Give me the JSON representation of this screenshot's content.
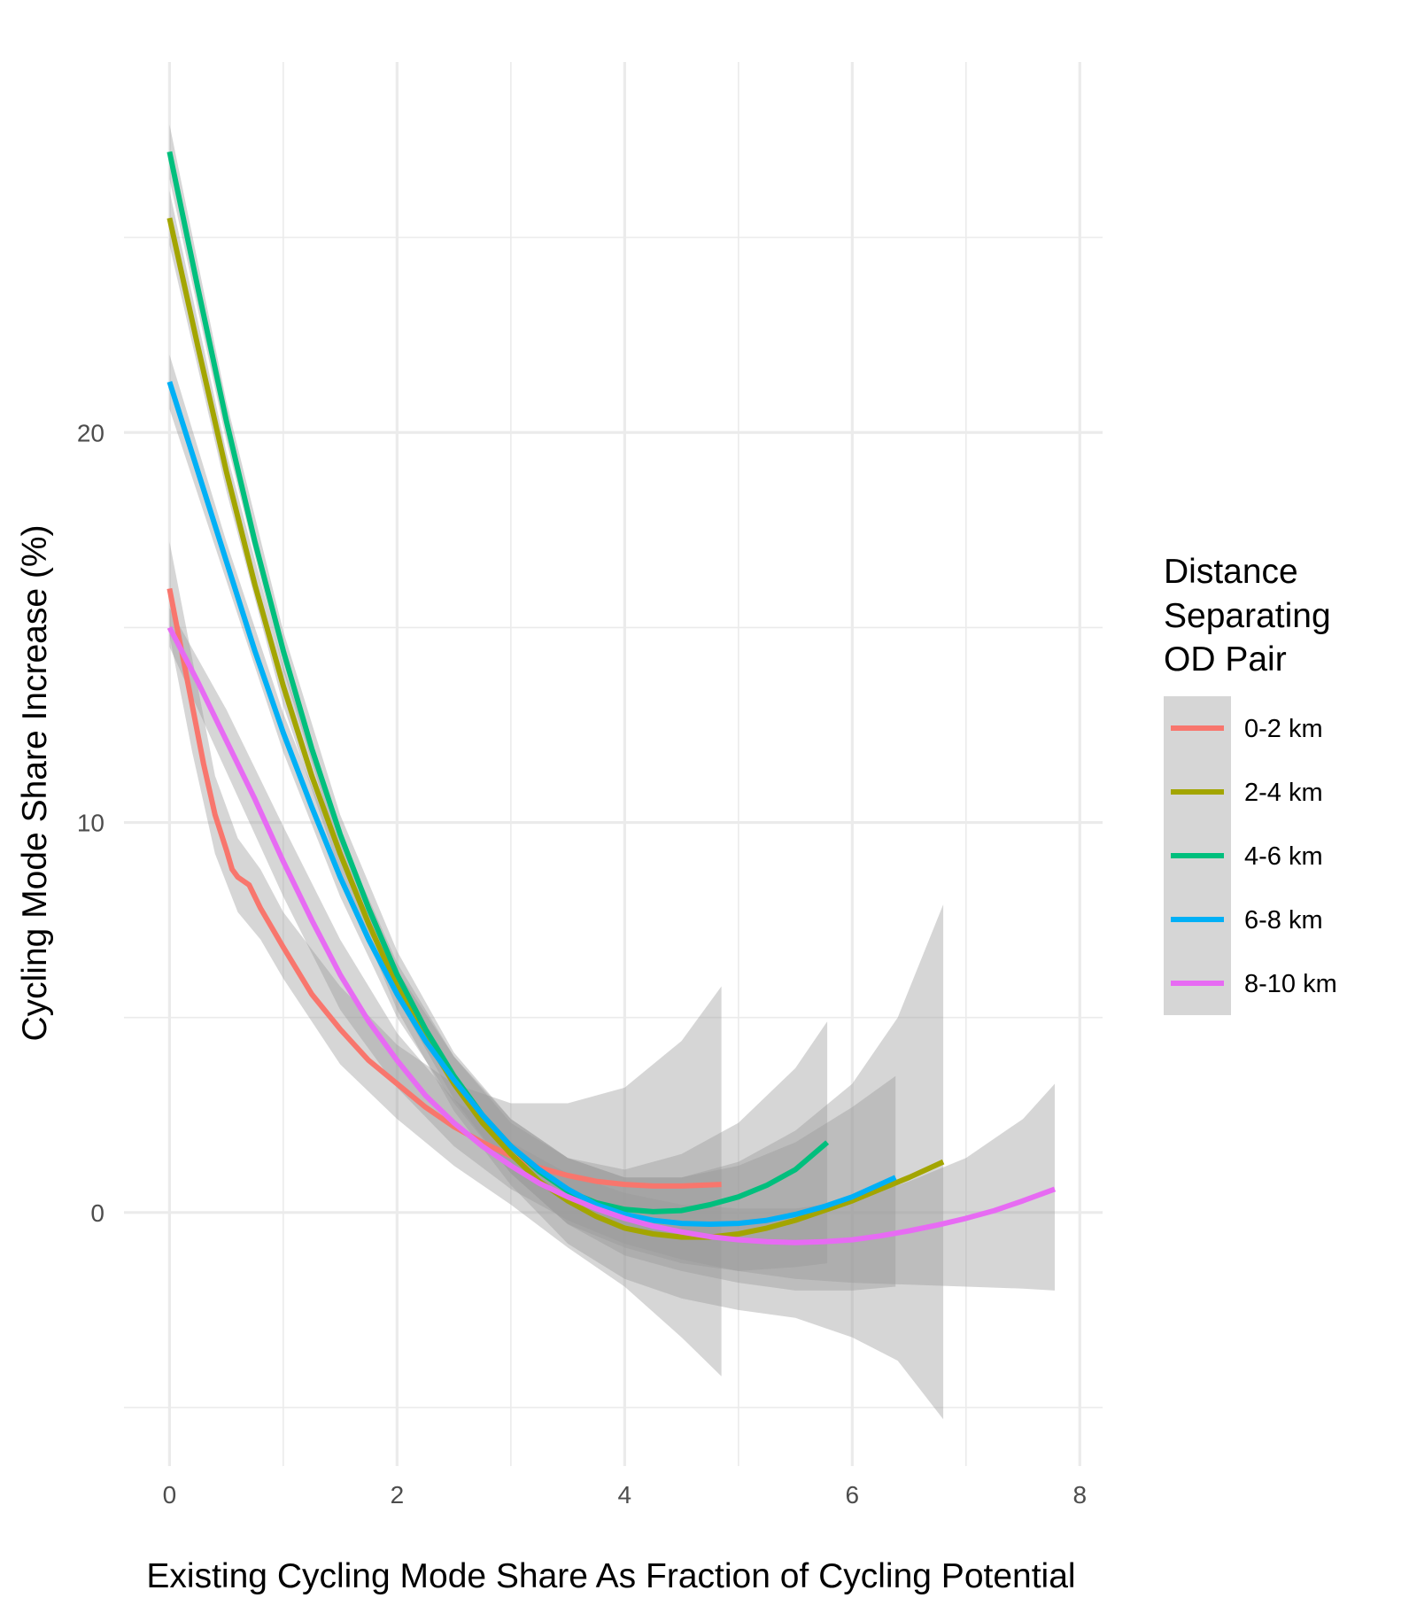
{
  "chart_data": {
    "type": "line",
    "title": "",
    "xlabel": "Existing Cycling Mode Share As Fraction of Cycling Potential",
    "ylabel": "Cycling Mode Share Increase (%)",
    "xlim": [
      -0.4,
      8.2
    ],
    "ylim": [
      -6.5,
      29.5
    ],
    "x_ticks": [
      0,
      2,
      4,
      6,
      8
    ],
    "y_ticks": [
      0,
      10,
      20
    ],
    "grid": true,
    "legend_title": [
      "Distance",
      "Separating",
      "OD Pair"
    ],
    "legend_position": "right",
    "series": [
      {
        "name": "0-2 km",
        "color": "#F8766D",
        "points": [
          [
            0,
            16
          ],
          [
            0.1,
            14.5
          ],
          [
            0.2,
            13
          ],
          [
            0.3,
            11.5
          ],
          [
            0.4,
            10.2
          ],
          [
            0.5,
            9.3
          ],
          [
            0.55,
            8.8
          ],
          [
            0.6,
            8.6
          ],
          [
            0.7,
            8.4
          ],
          [
            0.8,
            7.8
          ],
          [
            1.0,
            6.8
          ],
          [
            1.25,
            5.6
          ],
          [
            1.5,
            4.7
          ],
          [
            1.75,
            3.9
          ],
          [
            2.0,
            3.3
          ],
          [
            2.25,
            2.7
          ],
          [
            2.5,
            2.2
          ],
          [
            2.75,
            1.8
          ],
          [
            3.0,
            1.45
          ],
          [
            3.25,
            1.15
          ],
          [
            3.5,
            0.95
          ],
          [
            3.75,
            0.8
          ],
          [
            4.0,
            0.72
          ],
          [
            4.25,
            0.68
          ],
          [
            4.5,
            0.68
          ],
          [
            4.85,
            0.72
          ]
        ],
        "band": {
          "upper": [
            [
              0,
              17.2
            ],
            [
              0.2,
              14.2
            ],
            [
              0.4,
              11.2
            ],
            [
              0.6,
              9.6
            ],
            [
              0.8,
              8.8
            ],
            [
              1.0,
              7.7
            ],
            [
              1.5,
              5.8
            ],
            [
              2.0,
              4.3
            ],
            [
              2.5,
              3.3
            ],
            [
              3.0,
              2.8
            ],
            [
              3.5,
              2.8
            ],
            [
              4.0,
              3.2
            ],
            [
              4.5,
              4.4
            ],
            [
              4.85,
              5.8
            ]
          ],
          "lower": [
            [
              0,
              14.8
            ],
            [
              0.2,
              11.8
            ],
            [
              0.4,
              9.2
            ],
            [
              0.6,
              7.7
            ],
            [
              0.8,
              7.0
            ],
            [
              1.0,
              6.0
            ],
            [
              1.5,
              3.8
            ],
            [
              2.0,
              2.4
            ],
            [
              2.5,
              1.2
            ],
            [
              3.0,
              0.2
            ],
            [
              3.5,
              -0.9
            ],
            [
              4.0,
              -1.9
            ],
            [
              4.5,
              -3.2
            ],
            [
              4.85,
              -4.2
            ]
          ]
        }
      },
      {
        "name": "2-4 km",
        "color": "#A3A500",
        "points": [
          [
            0,
            25.5
          ],
          [
            0.25,
            22.2
          ],
          [
            0.5,
            19.0
          ],
          [
            0.75,
            16.1
          ],
          [
            1.0,
            13.5
          ],
          [
            1.25,
            11.2
          ],
          [
            1.5,
            9.2
          ],
          [
            1.75,
            7.4
          ],
          [
            2.0,
            5.8
          ],
          [
            2.25,
            4.5
          ],
          [
            2.5,
            3.3
          ],
          [
            2.75,
            2.3
          ],
          [
            3.0,
            1.5
          ],
          [
            3.25,
            0.8
          ],
          [
            3.5,
            0.3
          ],
          [
            3.75,
            -0.1
          ],
          [
            4.0,
            -0.4
          ],
          [
            4.25,
            -0.55
          ],
          [
            4.5,
            -0.63
          ],
          [
            4.75,
            -0.63
          ],
          [
            5.0,
            -0.55
          ],
          [
            5.25,
            -0.4
          ],
          [
            5.5,
            -0.2
          ],
          [
            5.75,
            0.05
          ],
          [
            6.0,
            0.3
          ],
          [
            6.25,
            0.6
          ],
          [
            6.5,
            0.9
          ],
          [
            6.8,
            1.3
          ]
        ],
        "band": {
          "upper": [
            [
              0,
              26.2
            ],
            [
              0.5,
              19.5
            ],
            [
              1.0,
              14.0
            ],
            [
              1.5,
              9.7
            ],
            [
              2.0,
              6.4
            ],
            [
              2.5,
              4.0
            ],
            [
              3.0,
              2.3
            ],
            [
              3.5,
              1.4
            ],
            [
              4.0,
              0.9
            ],
            [
              4.5,
              0.9
            ],
            [
              5.0,
              1.3
            ],
            [
              5.5,
              2.1
            ],
            [
              6.0,
              3.3
            ],
            [
              6.4,
              5.0
            ],
            [
              6.8,
              7.9
            ]
          ],
          "lower": [
            [
              0,
              24.8
            ],
            [
              0.5,
              18.5
            ],
            [
              1.0,
              13.0
            ],
            [
              1.5,
              8.7
            ],
            [
              2.0,
              5.2
            ],
            [
              2.5,
              2.6
            ],
            [
              3.0,
              0.7
            ],
            [
              3.5,
              -0.8
            ],
            [
              4.0,
              -1.7
            ],
            [
              4.5,
              -2.2
            ],
            [
              5.0,
              -2.5
            ],
            [
              5.5,
              -2.7
            ],
            [
              6.0,
              -3.2
            ],
            [
              6.4,
              -3.8
            ],
            [
              6.8,
              -5.3
            ]
          ]
        }
      },
      {
        "name": "4-6 km",
        "color": "#00BF7D",
        "points": [
          [
            0,
            27.2
          ],
          [
            0.25,
            23.7
          ],
          [
            0.5,
            20.3
          ],
          [
            0.75,
            17.2
          ],
          [
            1.0,
            14.4
          ],
          [
            1.25,
            11.9
          ],
          [
            1.5,
            9.7
          ],
          [
            1.75,
            7.8
          ],
          [
            2.0,
            6.1
          ],
          [
            2.25,
            4.7
          ],
          [
            2.5,
            3.5
          ],
          [
            2.75,
            2.5
          ],
          [
            3.0,
            1.7
          ],
          [
            3.25,
            1.05
          ],
          [
            3.5,
            0.55
          ],
          [
            3.75,
            0.25
          ],
          [
            4.0,
            0.08
          ],
          [
            4.25,
            0.02
          ],
          [
            4.5,
            0.05
          ],
          [
            4.75,
            0.2
          ],
          [
            5.0,
            0.4
          ],
          [
            5.25,
            0.7
          ],
          [
            5.5,
            1.1
          ],
          [
            5.78,
            1.8
          ]
        ],
        "band": {
          "upper": [
            [
              0,
              27.9
            ],
            [
              0.5,
              20.8
            ],
            [
              1.0,
              14.9
            ],
            [
              1.5,
              10.2
            ],
            [
              2.0,
              6.7
            ],
            [
              2.5,
              4.1
            ],
            [
              3.0,
              2.4
            ],
            [
              3.5,
              1.4
            ],
            [
              4.0,
              1.1
            ],
            [
              4.5,
              1.5
            ],
            [
              5.0,
              2.3
            ],
            [
              5.5,
              3.7
            ],
            [
              5.78,
              4.9
            ]
          ],
          "lower": [
            [
              0,
              26.5
            ],
            [
              0.5,
              19.8
            ],
            [
              1.0,
              13.9
            ],
            [
              1.5,
              9.2
            ],
            [
              2.0,
              5.5
            ],
            [
              2.5,
              2.9
            ],
            [
              3.0,
              1.0
            ],
            [
              3.5,
              -0.3
            ],
            [
              4.0,
              -0.9
            ],
            [
              4.5,
              -1.3
            ],
            [
              5.0,
              -1.5
            ],
            [
              5.5,
              -1.4
            ],
            [
              5.78,
              -1.3
            ]
          ]
        }
      },
      {
        "name": "6-8 km",
        "color": "#00B0F6",
        "points": [
          [
            0,
            21.3
          ],
          [
            0.25,
            19.0
          ],
          [
            0.5,
            16.7
          ],
          [
            0.75,
            14.4
          ],
          [
            1.0,
            12.3
          ],
          [
            1.25,
            10.4
          ],
          [
            1.5,
            8.6
          ],
          [
            1.75,
            7.0
          ],
          [
            2.0,
            5.6
          ],
          [
            2.25,
            4.4
          ],
          [
            2.5,
            3.4
          ],
          [
            2.75,
            2.5
          ],
          [
            3.0,
            1.7
          ],
          [
            3.25,
            1.1
          ],
          [
            3.5,
            0.6
          ],
          [
            3.75,
            0.2
          ],
          [
            4.0,
            -0.05
          ],
          [
            4.25,
            -0.2
          ],
          [
            4.5,
            -0.28
          ],
          [
            4.75,
            -0.3
          ],
          [
            5.0,
            -0.28
          ],
          [
            5.25,
            -0.2
          ],
          [
            5.5,
            -0.05
          ],
          [
            5.75,
            0.15
          ],
          [
            6.0,
            0.4
          ],
          [
            6.38,
            0.9
          ]
        ],
        "band": {
          "upper": [
            [
              0,
              22.0
            ],
            [
              0.5,
              17.2
            ],
            [
              1.0,
              12.8
            ],
            [
              1.5,
              9.1
            ],
            [
              2.0,
              6.2
            ],
            [
              2.5,
              4.0
            ],
            [
              3.0,
              2.4
            ],
            [
              3.5,
              1.4
            ],
            [
              4.0,
              0.9
            ],
            [
              4.5,
              0.9
            ],
            [
              5.0,
              1.2
            ],
            [
              5.5,
              1.8
            ],
            [
              6.0,
              2.7
            ],
            [
              6.38,
              3.5
            ]
          ],
          "lower": [
            [
              0,
              20.6
            ],
            [
              0.5,
              16.2
            ],
            [
              1.0,
              11.8
            ],
            [
              1.5,
              8.1
            ],
            [
              2.0,
              5.0
            ],
            [
              2.5,
              2.8
            ],
            [
              3.0,
              1.0
            ],
            [
              3.5,
              -0.3
            ],
            [
              4.0,
              -1.1
            ],
            [
              4.5,
              -1.5
            ],
            [
              5.0,
              -1.8
            ],
            [
              5.5,
              -2.0
            ],
            [
              6.0,
              -2.0
            ],
            [
              6.38,
              -1.9
            ]
          ]
        }
      },
      {
        "name": "8-10 km",
        "color": "#E76BF3",
        "points": [
          [
            0,
            15.0
          ],
          [
            0.25,
            13.6
          ],
          [
            0.5,
            12.1
          ],
          [
            0.75,
            10.6
          ],
          [
            1.0,
            9.0
          ],
          [
            1.25,
            7.5
          ],
          [
            1.5,
            6.1
          ],
          [
            1.75,
            4.9
          ],
          [
            2.0,
            3.9
          ],
          [
            2.25,
            3.0
          ],
          [
            2.5,
            2.3
          ],
          [
            2.75,
            1.7
          ],
          [
            3.0,
            1.2
          ],
          [
            3.25,
            0.75
          ],
          [
            3.5,
            0.4
          ],
          [
            3.75,
            0.1
          ],
          [
            4.0,
            -0.15
          ],
          [
            4.25,
            -0.35
          ],
          [
            4.5,
            -0.5
          ],
          [
            4.75,
            -0.62
          ],
          [
            5.0,
            -0.7
          ],
          [
            5.25,
            -0.75
          ],
          [
            5.5,
            -0.77
          ],
          [
            5.75,
            -0.75
          ],
          [
            6.0,
            -0.7
          ],
          [
            6.25,
            -0.6
          ],
          [
            6.5,
            -0.47
          ],
          [
            6.75,
            -0.32
          ],
          [
            7.0,
            -0.15
          ],
          [
            7.25,
            0.05
          ],
          [
            7.5,
            0.3
          ],
          [
            7.78,
            0.6
          ]
        ],
        "band": {
          "upper": [
            [
              0,
              15.5
            ],
            [
              0.5,
              12.9
            ],
            [
              1.0,
              9.9
            ],
            [
              1.5,
              7.0
            ],
            [
              2.0,
              4.6
            ],
            [
              2.5,
              2.9
            ],
            [
              3.0,
              1.8
            ],
            [
              3.5,
              1.0
            ],
            [
              4.0,
              0.5
            ],
            [
              4.5,
              0.2
            ],
            [
              5.0,
              0.1
            ],
            [
              5.5,
              0.1
            ],
            [
              6.0,
              0.3
            ],
            [
              6.5,
              0.8
            ],
            [
              7.0,
              1.4
            ],
            [
              7.5,
              2.4
            ],
            [
              7.78,
              3.3
            ]
          ],
          "lower": [
            [
              0,
              14.5
            ],
            [
              0.5,
              11.3
            ],
            [
              1.0,
              8.1
            ],
            [
              1.5,
              5.2
            ],
            [
              2.0,
              3.2
            ],
            [
              2.5,
              1.7
            ],
            [
              3.0,
              0.6
            ],
            [
              3.5,
              -0.2
            ],
            [
              4.0,
              -0.8
            ],
            [
              4.5,
              -1.2
            ],
            [
              5.0,
              -1.5
            ],
            [
              5.5,
              -1.7
            ],
            [
              6.0,
              -1.8
            ],
            [
              6.5,
              -1.85
            ],
            [
              7.0,
              -1.9
            ],
            [
              7.5,
              -1.95
            ],
            [
              7.78,
              -2.0
            ]
          ]
        }
      }
    ]
  }
}
